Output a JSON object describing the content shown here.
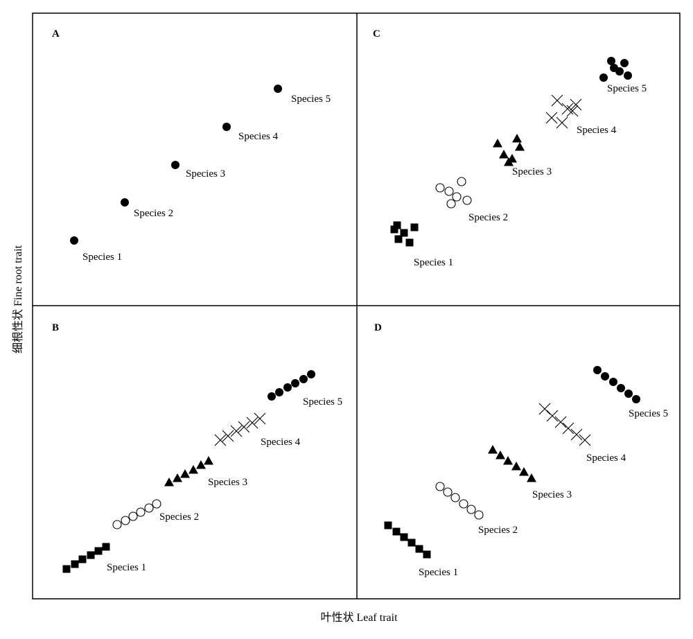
{
  "chart_data": {
    "type": "scatter",
    "title": "",
    "xlabel": "叶性状 Leaf trait",
    "ylabel": "细根性状 Fine root trait",
    "grid": false,
    "legend": "none",
    "colors": {
      "marker": "#000000",
      "axis": "#000000"
    },
    "panels": [
      {
        "letter": "A",
        "series": [
          {
            "label": "Species 1",
            "marker": "filled-circle",
            "points": [
              [
                107,
                347
              ]
            ]
          },
          {
            "label": "Species 2",
            "marker": "filled-circle",
            "points": [
              [
                180,
                292
              ]
            ]
          },
          {
            "label": "Species 3",
            "marker": "filled-circle",
            "points": [
              [
                253,
                238
              ]
            ]
          },
          {
            "label": "Species 4",
            "marker": "filled-circle",
            "points": [
              [
                327,
                183
              ]
            ]
          },
          {
            "label": "Species 5",
            "marker": "filled-circle",
            "points": [
              [
                401,
                128
              ]
            ]
          }
        ]
      },
      {
        "letter": "C",
        "series": [
          {
            "label": "Species 1",
            "marker": "filled-square",
            "points": [
              [
                569,
                331
              ],
              [
                573,
                325
              ],
              [
                598,
                328
              ],
              [
                583,
                336
              ],
              [
                575,
                345
              ],
              [
                591,
                350
              ]
            ]
          },
          {
            "label": "Species 2",
            "marker": "open-circle",
            "points": [
              [
                635,
                271
              ],
              [
                648,
                276
              ],
              [
                666,
                262
              ],
              [
                659,
                284
              ],
              [
                651,
                294
              ],
              [
                674,
                289
              ]
            ]
          },
          {
            "label": "Species 3",
            "marker": "filled-triangle",
            "points": [
              [
                718,
                207
              ],
              [
                746,
                200
              ],
              [
                750,
                212
              ],
              [
                727,
                223
              ],
              [
                739,
                229
              ],
              [
                734,
                234
              ]
            ]
          },
          {
            "label": "Species 4",
            "marker": "cross",
            "points": [
              [
                804,
                145
              ],
              [
                819,
                157
              ],
              [
                831,
                151
              ],
              [
                796,
                170
              ],
              [
                811,
                177
              ],
              [
                826,
                160
              ]
            ]
          },
          {
            "label": "Species 5",
            "marker": "filled-circle",
            "points": [
              [
                882,
                88
              ],
              [
                901,
                91
              ],
              [
                886,
                98
              ],
              [
                894,
                103
              ],
              [
                906,
                109
              ],
              [
                871,
                112
              ]
            ]
          }
        ]
      },
      {
        "letter": "B",
        "series": [
          {
            "label": "Species 1",
            "marker": "filled-square",
            "points": [
              [
                96,
                821
              ],
              [
                108,
                814
              ],
              [
                119,
                807
              ],
              [
                131,
                801
              ],
              [
                142,
                795
              ],
              [
                153,
                789
              ]
            ]
          },
          {
            "label": "Species 2",
            "marker": "open-circle",
            "points": [
              [
                169,
                757
              ],
              [
                181,
                751
              ],
              [
                192,
                745
              ],
              [
                203,
                739
              ],
              [
                215,
                733
              ],
              [
                226,
                727
              ]
            ]
          },
          {
            "label": "Species 3",
            "marker": "filled-triangle",
            "points": [
              [
                244,
                696
              ],
              [
                256,
                690
              ],
              [
                267,
                684
              ],
              [
                279,
                678
              ],
              [
                290,
                671
              ],
              [
                301,
                665
              ]
            ]
          },
          {
            "label": "Species 4",
            "marker": "cross",
            "points": [
              [
                318,
                635
              ],
              [
                329,
                629
              ],
              [
                341,
                622
              ],
              [
                352,
                616
              ],
              [
                364,
                610
              ],
              [
                375,
                604
              ]
            ]
          },
          {
            "label": "Species 5",
            "marker": "filled-circle",
            "points": [
              [
                392,
                572
              ],
              [
                403,
                566
              ],
              [
                415,
                559
              ],
              [
                426,
                553
              ],
              [
                438,
                547
              ],
              [
                449,
                540
              ]
            ]
          }
        ]
      },
      {
        "letter": "D",
        "series": [
          {
            "label": "Species 1",
            "marker": "filled-square",
            "points": [
              [
                560,
                758
              ],
              [
                572,
                767
              ],
              [
                583,
                775
              ],
              [
                594,
                783
              ],
              [
                605,
                792
              ],
              [
                616,
                800
              ]
            ]
          },
          {
            "label": "Species 2",
            "marker": "open-circle",
            "points": [
              [
                635,
                702
              ],
              [
                646,
                710
              ],
              [
                657,
                718
              ],
              [
                669,
                727
              ],
              [
                680,
                735
              ],
              [
                691,
                743
              ]
            ]
          },
          {
            "label": "Species 3",
            "marker": "filled-triangle",
            "points": [
              [
                711,
                649
              ],
              [
                722,
                657
              ],
              [
                733,
                665
              ],
              [
                745,
                673
              ],
              [
                756,
                681
              ],
              [
                767,
                690
              ]
            ]
          },
          {
            "label": "Species 4",
            "marker": "cross",
            "points": [
              [
                786,
                590
              ],
              [
                797,
                600
              ],
              [
                809,
                609
              ],
              [
                820,
                618
              ],
              [
                832,
                627
              ],
              [
                844,
                635
              ]
            ]
          },
          {
            "label": "Species 5",
            "marker": "filled-circle",
            "points": [
              [
                862,
                534
              ],
              [
                873,
                543
              ],
              [
                885,
                551
              ],
              [
                896,
                560
              ],
              [
                907,
                568
              ],
              [
                918,
                576
              ]
            ]
          }
        ]
      }
    ]
  }
}
